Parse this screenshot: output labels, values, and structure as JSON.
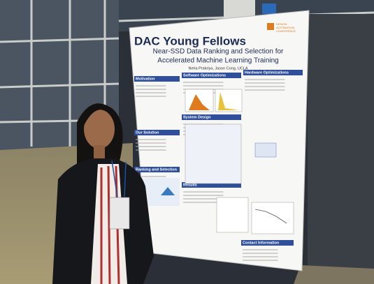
{
  "poster": {
    "title": "DAC Young Fellows",
    "logo": [
      "DESIGN",
      "AUTOMATION",
      "CONFERENCE"
    ],
    "subtitle": [
      "Near-SSD Data Ranking and Selection for",
      "Accelerated Machine Learning Training"
    ],
    "authors": "Neha Prakriya, Jason Cong, UCLA",
    "sections": [
      "Motivation",
      "Software Optimizations",
      "Hardware Optimizations",
      "Our Solution",
      "System Design",
      "Ranking and Selection",
      "Results",
      "Contact Information"
    ]
  }
}
